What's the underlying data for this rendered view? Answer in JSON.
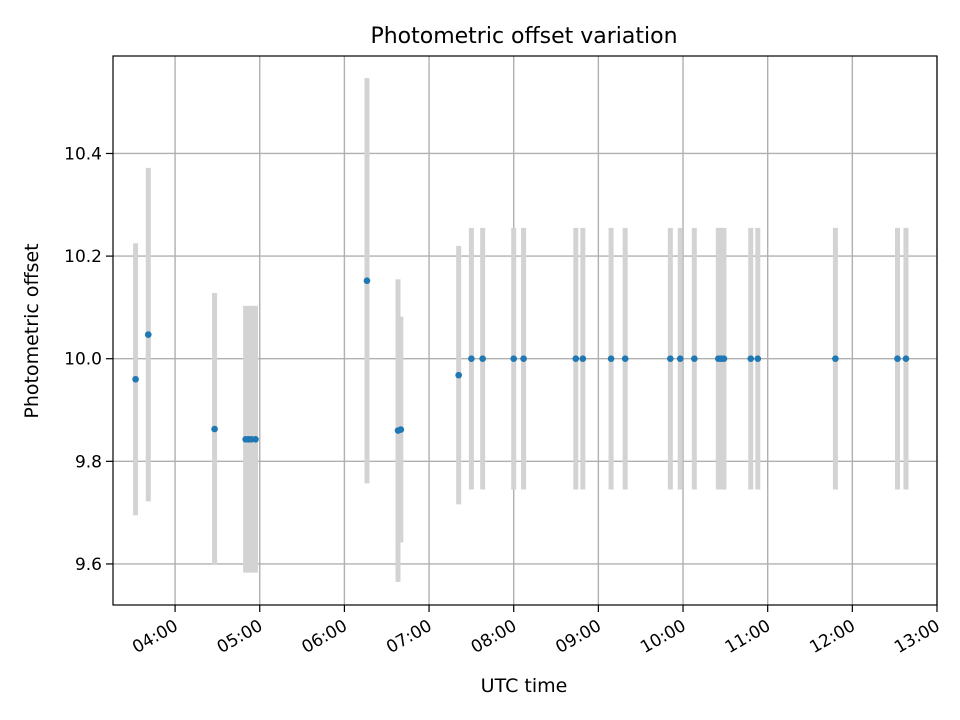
{
  "chart_data": {
    "type": "scatter",
    "title": "Photometric offset variation",
    "xlabel": "UTC time",
    "ylabel": "Photometric offset",
    "grid": true,
    "xlim": [
      "03:16",
      "13:00"
    ],
    "ylim": [
      9.52,
      10.59
    ],
    "x_ticks": [
      "04:00",
      "05:00",
      "06:00",
      "07:00",
      "08:00",
      "09:00",
      "10:00",
      "11:00",
      "12:00",
      "13:00"
    ],
    "y_ticks": [
      "9.6",
      "9.8",
      "10.0",
      "10.2",
      "10.4"
    ],
    "marker_color": "#1f77b4",
    "errorbar_color": "#d3d3d3",
    "points": [
      {
        "time": "03:32",
        "y": 9.96,
        "yerr": 0.265
      },
      {
        "time": "03:41",
        "y": 10.047,
        "yerr": 0.325
      },
      {
        "time": "04:28",
        "y": 9.863,
        "yerr": 0.265
      },
      {
        "time": "04:50",
        "y": 9.843,
        "yerr": 0.26
      },
      {
        "time": "04:52",
        "y": 9.843,
        "yerr": 0.26
      },
      {
        "time": "04:54",
        "y": 9.843,
        "yerr": 0.26
      },
      {
        "time": "04:57",
        "y": 9.843,
        "yerr": 0.26
      },
      {
        "time": "06:16",
        "y": 10.152,
        "yerr": 0.395
      },
      {
        "time": "06:38",
        "y": 9.86,
        "yerr": 0.295
      },
      {
        "time": "06:40",
        "y": 9.862,
        "yerr": 0.22
      },
      {
        "time": "07:21",
        "y": 9.968,
        "yerr": 0.252
      },
      {
        "time": "07:30",
        "y": 10.0,
        "yerr": 0.255
      },
      {
        "time": "07:38",
        "y": 10.0,
        "yerr": 0.255
      },
      {
        "time": "08:00",
        "y": 10.0,
        "yerr": 0.255
      },
      {
        "time": "08:07",
        "y": 10.0,
        "yerr": 0.255
      },
      {
        "time": "08:44",
        "y": 10.0,
        "yerr": 0.255
      },
      {
        "time": "08:49",
        "y": 10.0,
        "yerr": 0.255
      },
      {
        "time": "09:09",
        "y": 10.0,
        "yerr": 0.255
      },
      {
        "time": "09:19",
        "y": 10.0,
        "yerr": 0.255
      },
      {
        "time": "09:51",
        "y": 10.0,
        "yerr": 0.255
      },
      {
        "time": "09:58",
        "y": 10.0,
        "yerr": 0.255
      },
      {
        "time": "10:08",
        "y": 10.0,
        "yerr": 0.255
      },
      {
        "time": "10:25",
        "y": 10.0,
        "yerr": 0.255
      },
      {
        "time": "10:27",
        "y": 10.0,
        "yerr": 0.255
      },
      {
        "time": "10:29",
        "y": 10.0,
        "yerr": 0.255
      },
      {
        "time": "10:48",
        "y": 10.0,
        "yerr": 0.255
      },
      {
        "time": "10:53",
        "y": 10.0,
        "yerr": 0.255
      },
      {
        "time": "11:48",
        "y": 10.0,
        "yerr": 0.255
      },
      {
        "time": "12:32",
        "y": 10.0,
        "yerr": 0.255
      },
      {
        "time": "12:38",
        "y": 10.0,
        "yerr": 0.255
      }
    ]
  }
}
